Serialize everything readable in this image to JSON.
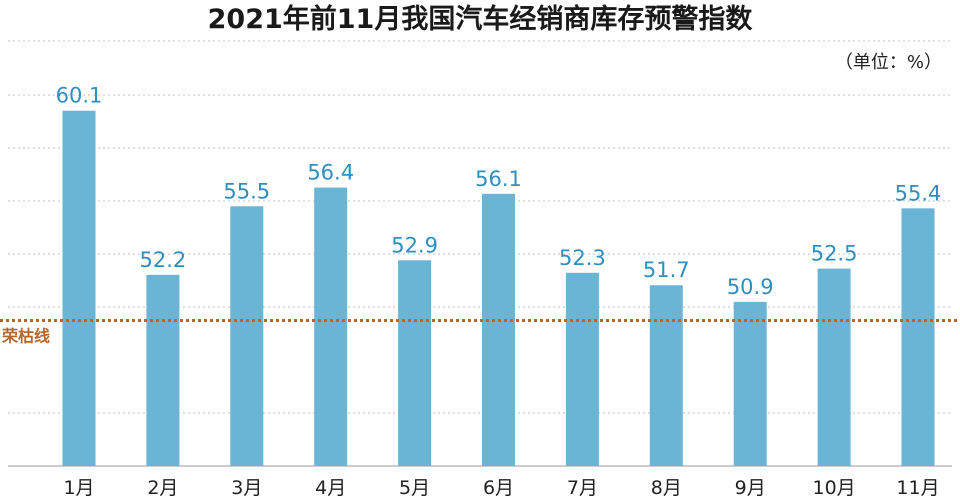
{
  "chart_data": {
    "type": "bar",
    "title": "2021年前11月我国汽车经销商库存预警指数",
    "unit_label": "（单位：%）",
    "categories": [
      "1月",
      "2月",
      "3月",
      "4月",
      "5月",
      "6月",
      "7月",
      "8月",
      "9月",
      "10月",
      "11月"
    ],
    "values": [
      60.1,
      52.2,
      55.5,
      56.4,
      52.9,
      56.1,
      52.3,
      51.7,
      50.9,
      52.5,
      55.4
    ],
    "value_labels": [
      "60.1",
      "52.2",
      "55.5",
      "56.4",
      "52.9",
      "56.1",
      "52.3",
      "51.7",
      "50.9",
      "52.5",
      "55.4"
    ],
    "reference_line": {
      "label": "荣枯线",
      "value": 50
    },
    "ylim": [
      43,
      61
    ],
    "grid": true,
    "colors": {
      "bar": "#6ab4d6",
      "value_label": "#2e8fc0",
      "reference_line": "#b8652a",
      "grid": "#bfbfbf",
      "axis": "#999999"
    }
  }
}
